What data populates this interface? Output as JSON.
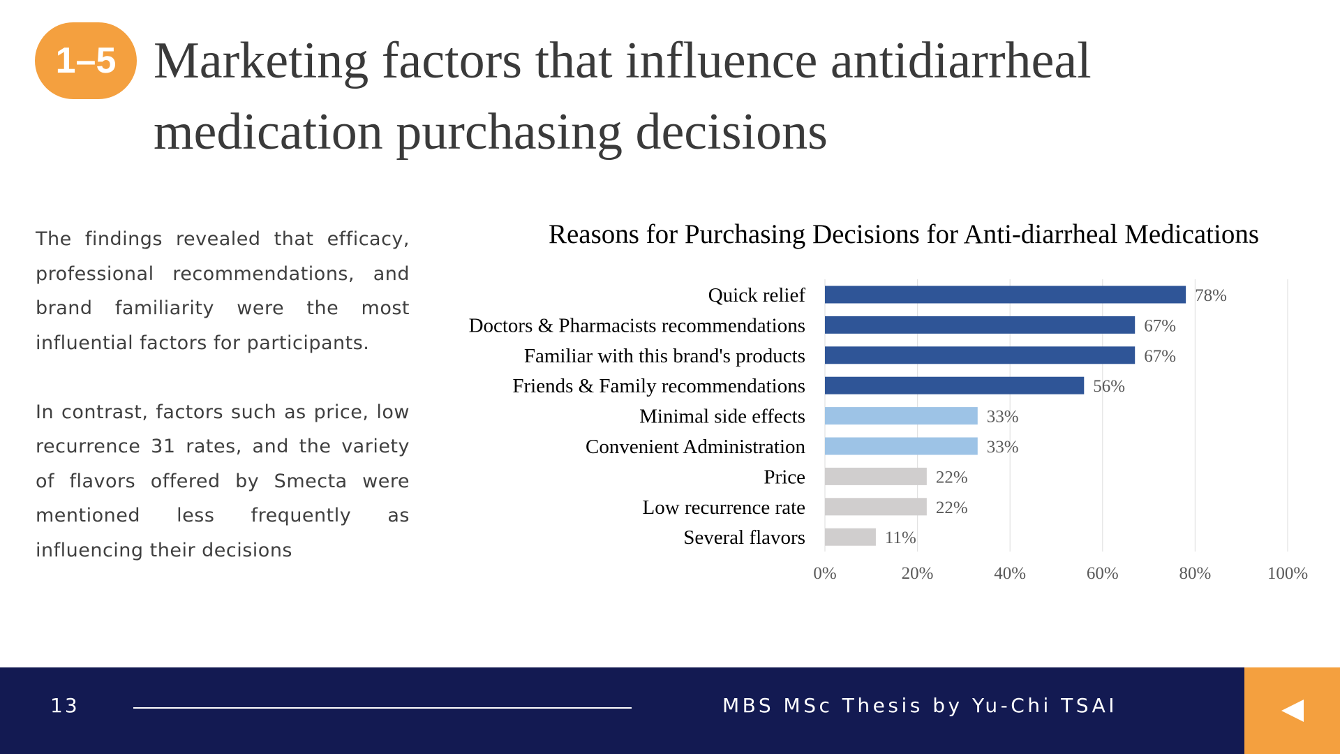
{
  "header": {
    "badge": "1–5",
    "title": "Marketing factors that influence antidiarrheal medication purchasing decisions"
  },
  "body": {
    "paragraph1": "The findings revealed that efficacy, professional recommendations, and brand familiarity were the most influential factors for participants.",
    "paragraph2": "In contrast, factors such as price, low recurrence 31 rates, and the variety of flavors offered by Smecta were mentioned less frequently as influencing their decisions"
  },
  "footer": {
    "page_number": "13",
    "credit": "MBS MSc Thesis by Yu-Chi TSAI",
    "back_icon": "triangle-left-icon"
  },
  "colors": {
    "accent": "#f4a03f",
    "footer_bg": "#131a52",
    "bar_dark": "#2f5597",
    "bar_light": "#9dc3e6",
    "bar_gray": "#d0cece"
  },
  "chart_data": {
    "type": "bar",
    "orientation": "horizontal",
    "title": "Reasons for Purchasing Decisions for Anti-diarrheal Medications",
    "categories": [
      "Quick relief",
      "Doctors & Pharmacists recommendations",
      "Familiar with this brand's products",
      "Friends & Family recommendations",
      "Minimal side effects",
      "Convenient Administration",
      "Price",
      "Low recurrence rate",
      "Several flavors"
    ],
    "values": [
      78,
      67,
      67,
      56,
      33,
      33,
      22,
      22,
      11
    ],
    "value_labels": [
      "78%",
      "67%",
      "67%",
      "56%",
      "33%",
      "33%",
      "22%",
      "22%",
      "11%"
    ],
    "bar_groups": [
      "dark",
      "dark",
      "dark",
      "dark",
      "light",
      "light",
      "gray",
      "gray",
      "gray"
    ],
    "xlim": [
      0,
      100
    ],
    "xticks": [
      "0%",
      "20%",
      "40%",
      "60%",
      "80%",
      "100%"
    ],
    "xlabel": "",
    "ylabel": "",
    "grid": true
  }
}
